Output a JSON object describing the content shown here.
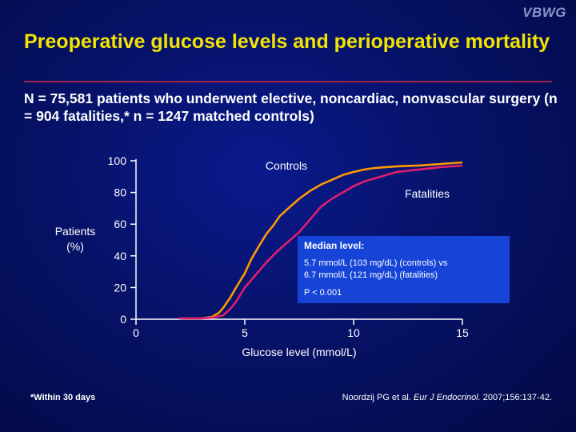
{
  "logo": "VBWG",
  "title": "Preoperative glucose levels and perioperative mortality",
  "subtitle": "N = 75,581 patients who underwent elective, noncardiac, nonvascular surgery (n = 904 fatalities,* n = 1247 matched controls)",
  "info_box": {
    "heading": "Median level:",
    "line1": "5.7 mmol/L (103 mg/dL) (controls) vs",
    "line2": "6.7 mmol/L (121 mg/dL) (fatalities)",
    "pvalue": "P < 0.001"
  },
  "footnote": "*Within 30 days",
  "citation": {
    "authors": "Noordzij PG et al.",
    "journal": "Eur J Endocrinol.",
    "details": "2007;156:137-42."
  },
  "colors": {
    "controls": "#ff9900",
    "fatalities": "#e01e6e",
    "title": "#f3e400",
    "box": "#1544d6"
  },
  "chart_data": {
    "type": "line",
    "xlabel": "Glucose level (mmol/L)",
    "ylabel": "Patients (%)",
    "xlim": [
      0,
      15
    ],
    "ylim": [
      0,
      100
    ],
    "xticks": [
      0,
      5,
      10,
      15
    ],
    "yticks": [
      0,
      20,
      40,
      60,
      80,
      100
    ],
    "series": [
      {
        "name": "Controls",
        "color": "#ff9900",
        "x": [
          2.0,
          3.0,
          3.5,
          3.8,
          4.0,
          4.3,
          4.6,
          5.0,
          5.3,
          5.6,
          6.0,
          6.3,
          6.6,
          7.0,
          7.5,
          8.0,
          8.5,
          9.0,
          9.5,
          10.0,
          10.5,
          11.0,
          12.0,
          13.0,
          14.0,
          15.0
        ],
        "y": [
          0.5,
          0.5,
          1.5,
          4,
          7,
          13,
          20,
          29,
          38,
          45,
          54,
          59,
          65,
          70,
          76,
          81,
          85,
          88,
          91,
          93,
          94.5,
          95.5,
          96.5,
          97,
          98,
          99
        ]
      },
      {
        "name": "Fatalities",
        "color": "#e01e6e",
        "x": [
          2.0,
          3.0,
          3.5,
          4.0,
          4.3,
          4.6,
          5.0,
          5.5,
          6.0,
          6.5,
          7.0,
          7.5,
          8.0,
          8.5,
          9.0,
          9.5,
          10.0,
          10.5,
          11.0,
          11.5,
          12.0,
          13.0,
          14.0,
          15.0
        ],
        "y": [
          0.5,
          0.5,
          1,
          2.5,
          6,
          11,
          20,
          28,
          36,
          43,
          49,
          55,
          63,
          71,
          76,
          80,
          84,
          87,
          89,
          91,
          93,
          94.5,
          96,
          97
        ]
      }
    ]
  }
}
